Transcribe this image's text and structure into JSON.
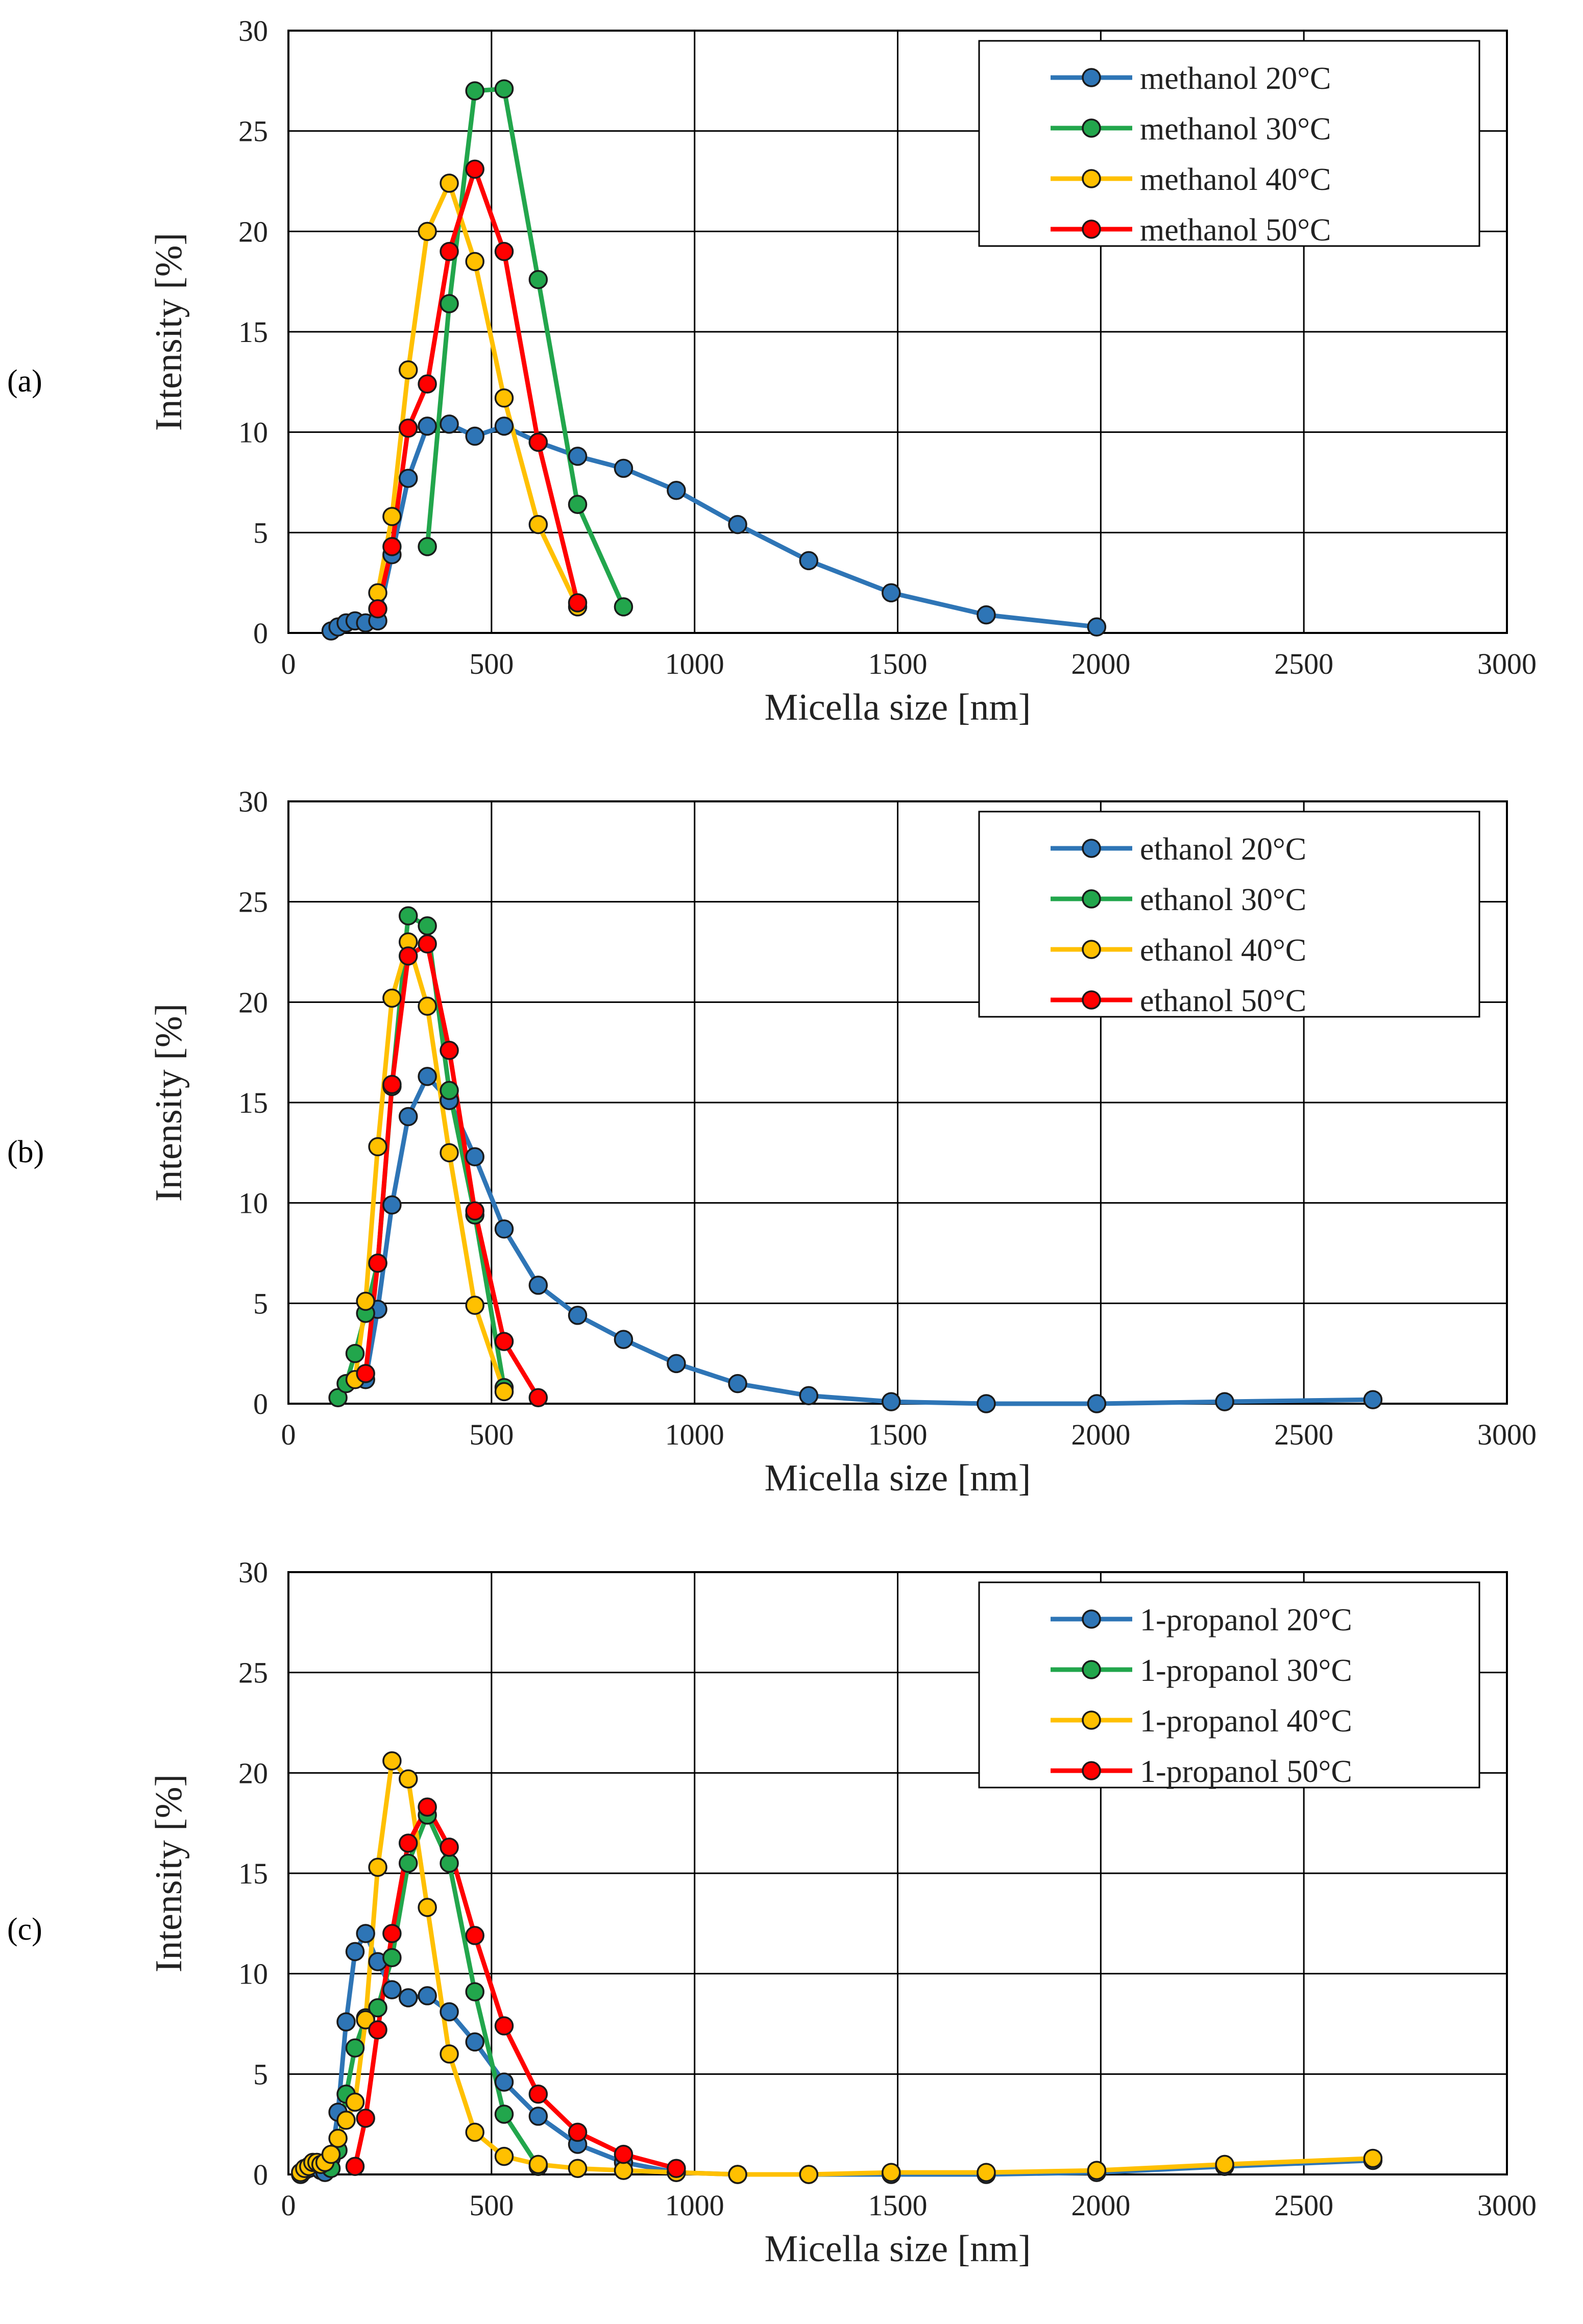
{
  "chart_data": [
    {
      "type": "line",
      "panel_label": "(a)",
      "xlabel": "Micella size [nm]",
      "ylabel": "Intensity [%]",
      "xlim": [
        0,
        3000
      ],
      "ylim": [
        0,
        30
      ],
      "xticks": [
        "0",
        "500",
        "1000",
        "1500",
        "2000",
        "2500",
        "3000"
      ],
      "yticks": [
        "0",
        "5",
        "10",
        "15",
        "20",
        "25",
        "30"
      ],
      "grid": true,
      "legend_position": "top-right",
      "series": [
        {
          "name": "methanol 20°C",
          "color": "#2E75B6",
          "x": [
            105,
            122,
            142,
            164,
            190,
            220,
            255,
            295,
            342,
            396,
            459,
            531,
            615,
            712,
            825,
            955,
            1106,
            1281,
            1484,
            1718,
            1990
          ],
          "y": [
            0.1,
            0.3,
            0.5,
            0.6,
            0.5,
            0.6,
            3.9,
            7.7,
            10.3,
            10.4,
            9.8,
            10.3,
            9.5,
            8.8,
            8.2,
            7.1,
            5.4,
            3.6,
            2.0,
            0.9,
            0.3
          ]
        },
        {
          "name": "methanol 30°C",
          "color": "#22A64C",
          "x": [
            342,
            396,
            459,
            531,
            615,
            712,
            825
          ],
          "y": [
            4.3,
            16.4,
            27.0,
            27.1,
            17.6,
            6.4,
            1.3
          ]
        },
        {
          "name": "methanol 40°C",
          "color": "#FFC000",
          "x": [
            220,
            255,
            295,
            342,
            396,
            459,
            531,
            615,
            712
          ],
          "y": [
            2.0,
            5.8,
            13.1,
            20.0,
            22.4,
            18.5,
            11.7,
            5.4,
            1.3
          ]
        },
        {
          "name": "methanol 50°C",
          "color": "#FF0000",
          "x": [
            220,
            255,
            295,
            342,
            396,
            459,
            531,
            615,
            712
          ],
          "y": [
            1.2,
            4.3,
            10.2,
            12.4,
            19.0,
            23.1,
            19.0,
            9.5,
            1.5
          ]
        }
      ]
    },
    {
      "type": "line",
      "panel_label": "(b)",
      "xlabel": "Micella size [nm]",
      "ylabel": "Intensity [%]",
      "xlim": [
        0,
        3000
      ],
      "ylim": [
        0,
        30
      ],
      "xticks": [
        "0",
        "500",
        "1000",
        "1500",
        "2000",
        "2500",
        "3000"
      ],
      "yticks": [
        "0",
        "5",
        "10",
        "15",
        "20",
        "25",
        "30"
      ],
      "grid": true,
      "legend_position": "top-right",
      "series": [
        {
          "name": "ethanol 20°C",
          "color": "#2E75B6",
          "x": [
            190,
            220,
            255,
            295,
            342,
            396,
            459,
            531,
            615,
            712,
            825,
            955,
            1106,
            1281,
            1484,
            1718,
            1990,
            2305,
            2670
          ],
          "y": [
            1.2,
            4.7,
            9.9,
            14.3,
            16.3,
            15.1,
            12.3,
            8.7,
            5.9,
            4.4,
            3.2,
            2.0,
            1.0,
            0.4,
            0.1,
            0.0,
            0.0,
            0.1,
            0.2
          ]
        },
        {
          "name": "ethanol 30°C",
          "color": "#22A64C",
          "x": [
            122,
            142,
            164,
            190,
            220,
            255,
            295,
            342,
            396,
            459,
            531
          ],
          "y": [
            0.3,
            1.0,
            2.5,
            4.5,
            7.0,
            15.8,
            24.3,
            23.8,
            15.6,
            9.4,
            0.8
          ]
        },
        {
          "name": "ethanol 40°C",
          "color": "#FFC000",
          "x": [
            164,
            190,
            220,
            255,
            295,
            342,
            396,
            459,
            531
          ],
          "y": [
            1.2,
            5.1,
            12.8,
            20.2,
            23.0,
            19.8,
            12.5,
            4.9,
            0.6
          ]
        },
        {
          "name": "ethanol 50°C",
          "color": "#FF0000",
          "x": [
            190,
            220,
            255,
            295,
            342,
            396,
            459,
            531,
            615
          ],
          "y": [
            1.5,
            7.0,
            15.9,
            22.3,
            22.9,
            17.6,
            9.6,
            3.1,
            0.3
          ]
        }
      ]
    },
    {
      "type": "line",
      "panel_label": "(c)",
      "xlabel": "Micella size [nm]",
      "ylabel": "Intensity [%]",
      "xlim": [
        0,
        3000
      ],
      "ylim": [
        0,
        30
      ],
      "xticks": [
        "0",
        "500",
        "1000",
        "1500",
        "2000",
        "2500",
        "3000"
      ],
      "yticks": [
        "0",
        "5",
        "10",
        "15",
        "20",
        "25",
        "30"
      ],
      "grid": true,
      "legend_position": "top-right",
      "series": [
        {
          "name": "1-propanol 20°C",
          "color": "#2E75B6",
          "x": [
            30,
            40,
            50,
            60,
            70,
            80,
            90,
            105,
            122,
            142,
            164,
            190,
            220,
            255,
            295,
            342,
            396,
            459,
            531,
            615,
            712,
            825,
            955,
            1106,
            1281,
            1484,
            1718,
            1990,
            2305,
            2670
          ],
          "y": [
            0.0,
            0.2,
            0.3,
            0.5,
            0.4,
            0.2,
            0.1,
            0.8,
            3.1,
            7.6,
            11.1,
            12.0,
            10.6,
            9.2,
            8.8,
            8.9,
            8.1,
            6.6,
            4.6,
            2.9,
            1.5,
            0.6,
            0.1,
            0.0,
            0.0,
            0.0,
            0.0,
            0.1,
            0.4,
            0.7
          ]
        },
        {
          "name": "1-propanol 30°C",
          "color": "#22A64C",
          "x": [
            105,
            122,
            142,
            164,
            190,
            220,
            255,
            295,
            342,
            396,
            459,
            531,
            615
          ],
          "y": [
            0.3,
            1.2,
            4.0,
            6.3,
            7.8,
            8.3,
            10.8,
            15.5,
            17.9,
            15.5,
            9.1,
            3.0,
            0.4
          ]
        },
        {
          "name": "1-propanol 40°C",
          "color": "#FFC000",
          "x": [
            30,
            40,
            50,
            60,
            70,
            80,
            90,
            105,
            122,
            142,
            164,
            190,
            220,
            255,
            295,
            342,
            396,
            459,
            531,
            615,
            712,
            825,
            955,
            1106,
            1281,
            1484,
            1718,
            1990,
            2305,
            2670
          ],
          "y": [
            0.1,
            0.3,
            0.4,
            0.6,
            0.6,
            0.5,
            0.6,
            1.0,
            1.8,
            2.7,
            3.6,
            7.7,
            15.3,
            20.6,
            19.7,
            13.3,
            6.0,
            2.1,
            0.9,
            0.5,
            0.3,
            0.2,
            0.1,
            0.0,
            0.0,
            0.1,
            0.1,
            0.2,
            0.5,
            0.8
          ]
        },
        {
          "name": "1-propanol 50°C",
          "color": "#FF0000",
          "x": [
            164,
            190,
            220,
            255,
            295,
            342,
            396,
            459,
            531,
            615,
            712,
            825,
            955
          ],
          "y": [
            0.4,
            2.8,
            7.2,
            12.0,
            16.5,
            18.3,
            16.3,
            11.9,
            7.4,
            4.0,
            2.1,
            1.0,
            0.3
          ]
        }
      ]
    }
  ]
}
